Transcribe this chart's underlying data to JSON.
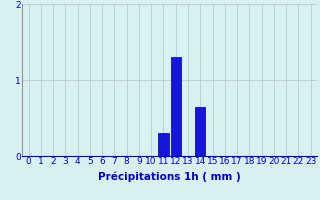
{
  "hours": [
    0,
    1,
    2,
    3,
    4,
    5,
    6,
    7,
    8,
    9,
    10,
    11,
    12,
    13,
    14,
    15,
    16,
    17,
    18,
    19,
    20,
    21,
    22,
    23
  ],
  "values": [
    0,
    0,
    0,
    0,
    0,
    0,
    0,
    0,
    0,
    0,
    0,
    0.3,
    1.3,
    0,
    0.65,
    0,
    0,
    0,
    0,
    0,
    0,
    0,
    0,
    0
  ],
  "bar_color": "#1515dd",
  "bar_edge_color": "#00008b",
  "background_color": "#d8f0f0",
  "grid_color": "#b8cccc",
  "axis_label_color": "#0000cc",
  "tick_color": "#0000cc",
  "xlabel": "Précipitations 1h ( mm )",
  "ylim": [
    0,
    2
  ],
  "yticks": [
    0,
    1,
    2
  ],
  "xlabel_fontsize": 7.5,
  "tick_fontsize": 6.5
}
